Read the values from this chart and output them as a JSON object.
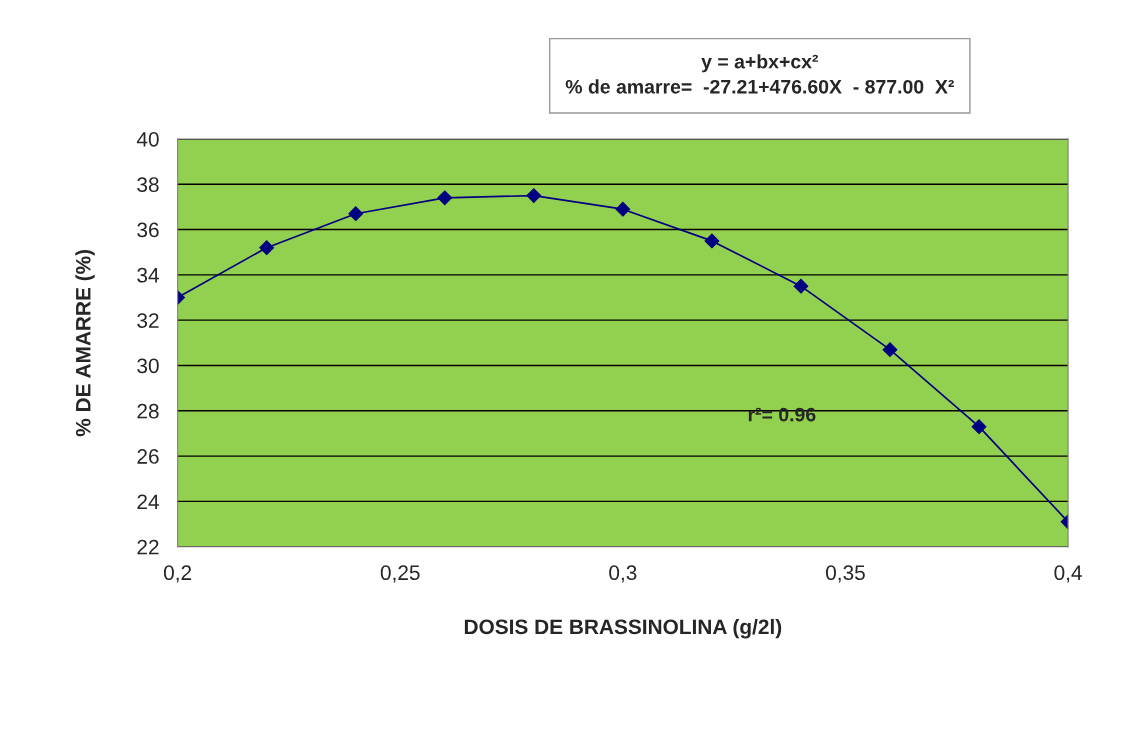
{
  "chart_data": {
    "type": "line",
    "xlabel": "DOSIS DE BRASSINOLINA (g/2l)",
    "ylabel": "% DE AMARRE (%)",
    "annotations": [
      "y = a+bx+cx²\n% de amarre=  -27.21+476.60X  - 877.00  X²",
      "r²= 0.96"
    ],
    "x": [
      0.2,
      0.22,
      0.24,
      0.26,
      0.28,
      0.3,
      0.32,
      0.34,
      0.36,
      0.38,
      0.4
    ],
    "series": [
      {
        "color": "#000080",
        "values": [
          33.0,
          35.2,
          36.7,
          37.4,
          37.5,
          36.9,
          35.5,
          33.5,
          30.7,
          27.3,
          23.1
        ]
      }
    ],
    "xlim": [
      0.2,
      0.4
    ],
    "xticks": [
      {
        "value": 0.2,
        "label": "0,2"
      },
      {
        "value": 0.25,
        "label": "0,25"
      },
      {
        "value": 0.3,
        "label": "0,3"
      },
      {
        "value": 0.35,
        "label": "0,35"
      },
      {
        "value": 0.4,
        "label": "0,4"
      }
    ],
    "ylim": [
      22,
      40
    ],
    "yticks": [
      22,
      24,
      26,
      28,
      30,
      32,
      34,
      36,
      38,
      40
    ],
    "grid": "y",
    "marker": "diamond",
    "line_style": "solid",
    "legend": false
  }
}
